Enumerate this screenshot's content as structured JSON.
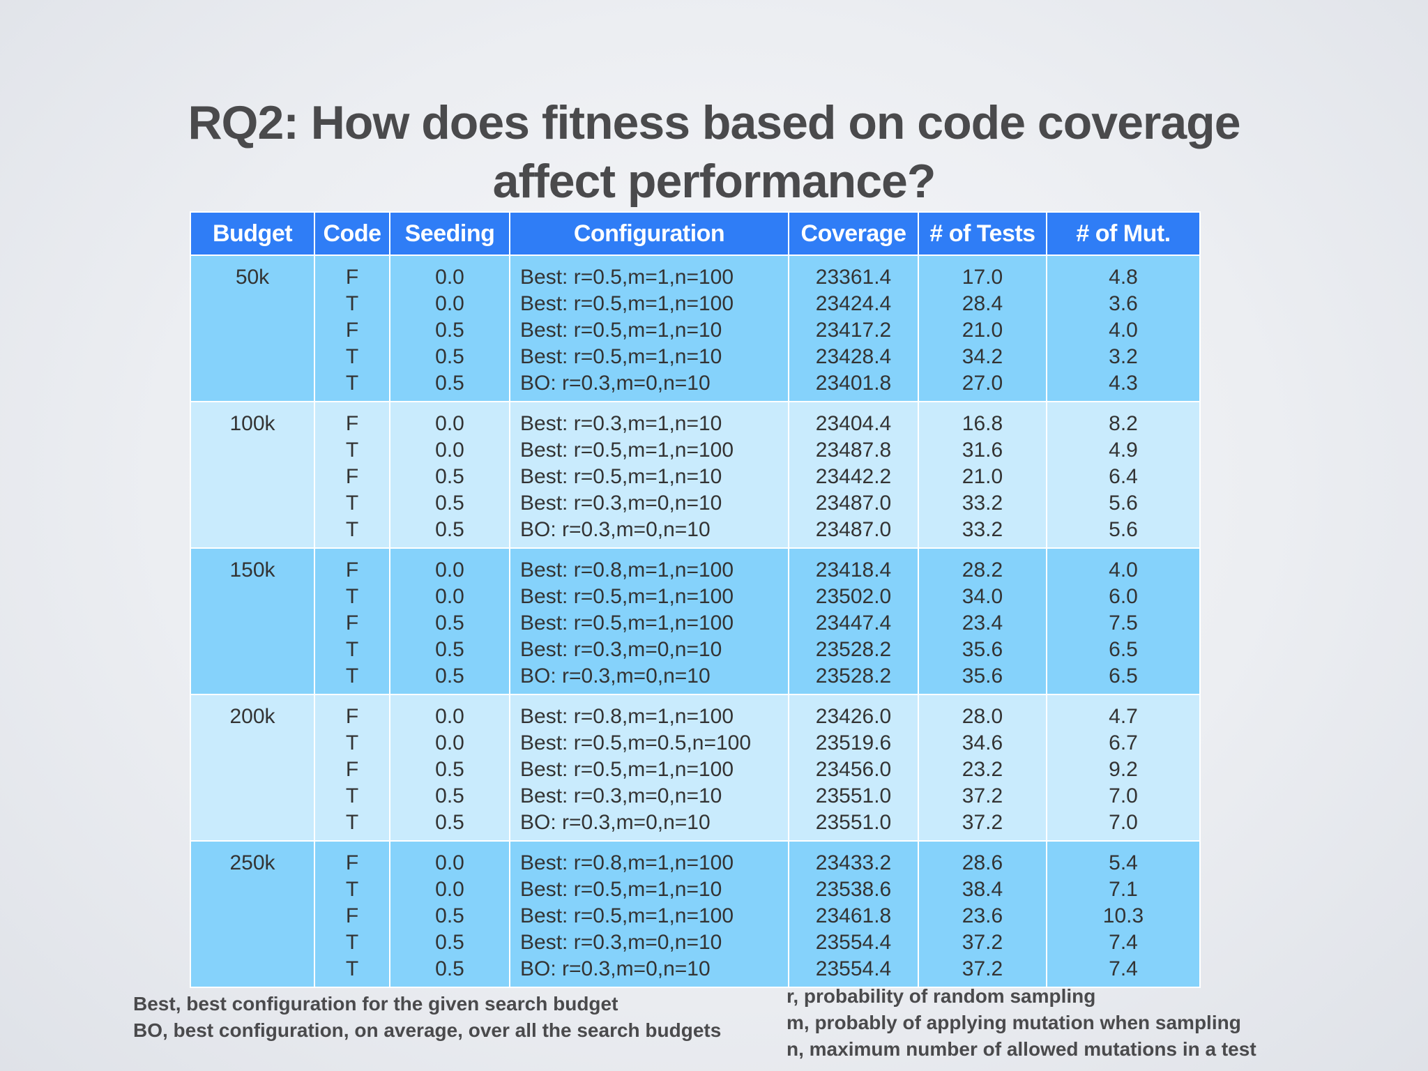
{
  "title": "RQ2: How does fitness based on code coverage affect performance?",
  "table": {
    "headers": [
      "Budget",
      "Code",
      "Seeding",
      "Configuration",
      "Coverage",
      "# of Tests",
      "# of Mut."
    ],
    "groups": [
      {
        "budget": "50k",
        "rows": [
          {
            "code": "F",
            "seeding": "0.0",
            "configuration": "Best: r=0.5,m=1,n=100",
            "coverage": "23361.4",
            "tests": "17.0",
            "mut": "4.8"
          },
          {
            "code": "T",
            "seeding": "0.0",
            "configuration": "Best: r=0.5,m=1,n=100",
            "coverage": "23424.4",
            "tests": "28.4",
            "mut": "3.6"
          },
          {
            "code": "F",
            "seeding": "0.5",
            "configuration": "Best: r=0.5,m=1,n=10",
            "coverage": "23417.2",
            "tests": "21.0",
            "mut": "4.0"
          },
          {
            "code": "T",
            "seeding": "0.5",
            "configuration": "Best: r=0.5,m=1,n=10",
            "coverage": "23428.4",
            "tests": "34.2",
            "mut": "3.2"
          },
          {
            "code": "T",
            "seeding": "0.5",
            "configuration": "BO: r=0.3,m=0,n=10",
            "coverage": "23401.8",
            "tests": "27.0",
            "mut": "4.3"
          }
        ]
      },
      {
        "budget": "100k",
        "rows": [
          {
            "code": "F",
            "seeding": "0.0",
            "configuration": "Best: r=0.3,m=1,n=10",
            "coverage": "23404.4",
            "tests": "16.8",
            "mut": "8.2"
          },
          {
            "code": "T",
            "seeding": "0.0",
            "configuration": "Best: r=0.5,m=1,n=100",
            "coverage": "23487.8",
            "tests": "31.6",
            "mut": "4.9"
          },
          {
            "code": "F",
            "seeding": "0.5",
            "configuration": "Best: r=0.5,m=1,n=10",
            "coverage": "23442.2",
            "tests": "21.0",
            "mut": "6.4"
          },
          {
            "code": "T",
            "seeding": "0.5",
            "configuration": "Best: r=0.3,m=0,n=10",
            "coverage": "23487.0",
            "tests": "33.2",
            "mut": "5.6"
          },
          {
            "code": "T",
            "seeding": "0.5",
            "configuration": "BO: r=0.3,m=0,n=10",
            "coverage": "23487.0",
            "tests": "33.2",
            "mut": "5.6"
          }
        ]
      },
      {
        "budget": "150k",
        "rows": [
          {
            "code": "F",
            "seeding": "0.0",
            "configuration": "Best: r=0.8,m=1,n=100",
            "coverage": "23418.4",
            "tests": "28.2",
            "mut": "4.0"
          },
          {
            "code": "T",
            "seeding": "0.0",
            "configuration": "Best: r=0.5,m=1,n=100",
            "coverage": "23502.0",
            "tests": "34.0",
            "mut": "6.0"
          },
          {
            "code": "F",
            "seeding": "0.5",
            "configuration": "Best: r=0.5,m=1,n=100",
            "coverage": "23447.4",
            "tests": "23.4",
            "mut": "7.5"
          },
          {
            "code": "T",
            "seeding": "0.5",
            "configuration": "Best: r=0.3,m=0,n=10",
            "coverage": "23528.2",
            "tests": "35.6",
            "mut": "6.5"
          },
          {
            "code": "T",
            "seeding": "0.5",
            "configuration": "BO: r=0.3,m=0,n=10",
            "coverage": "23528.2",
            "tests": "35.6",
            "mut": "6.5"
          }
        ]
      },
      {
        "budget": "200k",
        "rows": [
          {
            "code": "F",
            "seeding": "0.0",
            "configuration": "Best: r=0.8,m=1,n=100",
            "coverage": "23426.0",
            "tests": "28.0",
            "mut": "4.7"
          },
          {
            "code": "T",
            "seeding": "0.0",
            "configuration": "Best: r=0.5,m=0.5,n=100",
            "coverage": "23519.6",
            "tests": "34.6",
            "mut": "6.7"
          },
          {
            "code": "F",
            "seeding": "0.5",
            "configuration": "Best: r=0.5,m=1,n=100",
            "coverage": "23456.0",
            "tests": "23.2",
            "mut": "9.2"
          },
          {
            "code": "T",
            "seeding": "0.5",
            "configuration": "Best: r=0.3,m=0,n=10",
            "coverage": "23551.0",
            "tests": "37.2",
            "mut": "7.0"
          },
          {
            "code": "T",
            "seeding": "0.5",
            "configuration": "BO: r=0.3,m=0,n=10",
            "coverage": "23551.0",
            "tests": "37.2",
            "mut": "7.0"
          }
        ]
      },
      {
        "budget": "250k",
        "rows": [
          {
            "code": "F",
            "seeding": "0.0",
            "configuration": "Best: r=0.8,m=1,n=100",
            "coverage": "23433.2",
            "tests": "28.6",
            "mut": "5.4"
          },
          {
            "code": "T",
            "seeding": "0.0",
            "configuration": "Best: r=0.5,m=1,n=10",
            "coverage": "23538.6",
            "tests": "38.4",
            "mut": "7.1"
          },
          {
            "code": "F",
            "seeding": "0.5",
            "configuration": "Best: r=0.5,m=1,n=100",
            "coverage": "23461.8",
            "tests": "23.6",
            "mut": "10.3"
          },
          {
            "code": "T",
            "seeding": "0.5",
            "configuration": "Best: r=0.3,m=0,n=10",
            "coverage": "23554.4",
            "tests": "37.2",
            "mut": "7.4"
          },
          {
            "code": "T",
            "seeding": "0.5",
            "configuration": "BO: r=0.3,m=0,n=10",
            "coverage": "23554.4",
            "tests": "37.2",
            "mut": "7.4"
          }
        ]
      }
    ]
  },
  "notes_left": [
    "Best, best configuration for the given search budget",
    "BO, best configuration, on average, over all the search budgets"
  ],
  "notes_right": [
    "r, probability of random sampling",
    "m, probably of applying mutation when sampling",
    "n, maximum number of allowed mutations in a test"
  ],
  "colors": {
    "header_blue": "#2f7df6",
    "band_dark": "#85d2fb",
    "band_light": "#c9ebfd",
    "title_gray": "#4a4a4c"
  }
}
